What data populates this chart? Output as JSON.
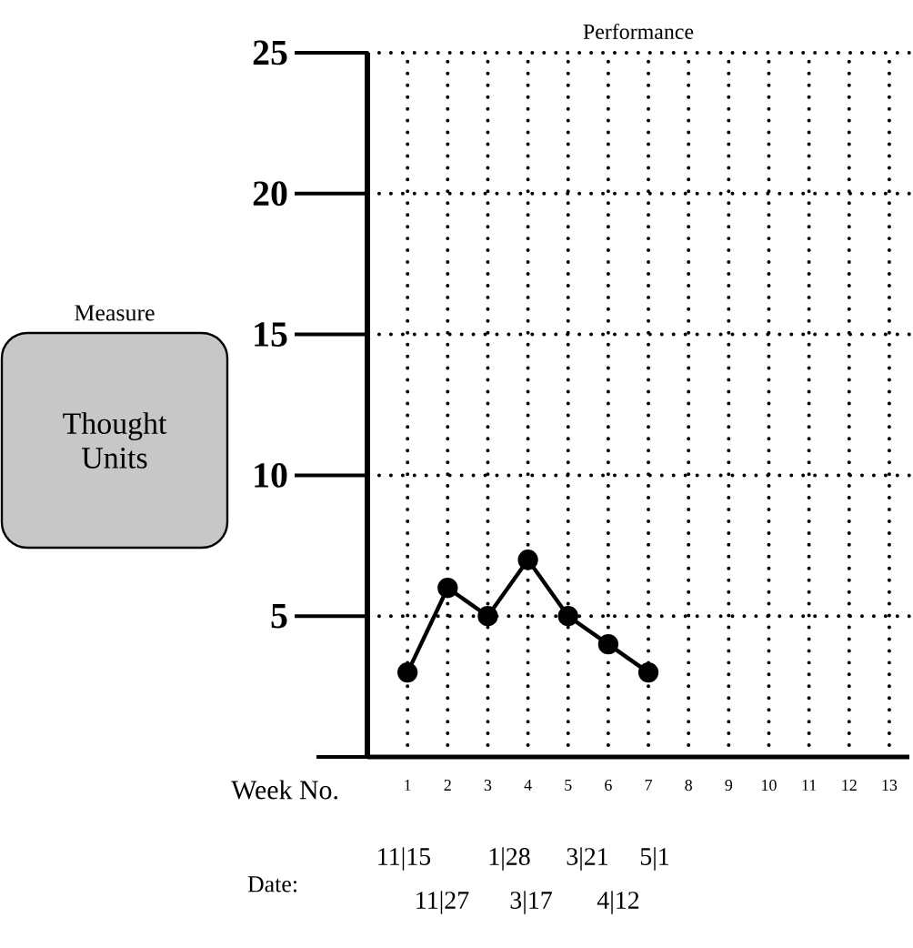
{
  "chart_data": {
    "type": "line",
    "title": "Performance",
    "xlabel": "Week No.",
    "ylabel": "Thought Units",
    "annotations": [
      "Measure",
      "Date:",
      "11|15",
      "1|28",
      "3|21",
      "5|1",
      "11|27",
      "3|17",
      "4|12"
    ],
    "x": [
      1,
      2,
      3,
      4,
      5,
      6,
      7
    ],
    "values": [
      3,
      6,
      5,
      7,
      5,
      4,
      3
    ],
    "color": "#000000",
    "marker": "circle",
    "xlim": [
      0,
      13.5
    ],
    "xticks": [
      1,
      2,
      3,
      4,
      5,
      6,
      7,
      8,
      9,
      10,
      11,
      12,
      13
    ],
    "ylim": [
      0,
      25
    ],
    "yticks": [
      {
        "value": 0,
        "label": null
      },
      5,
      10,
      15,
      20,
      25
    ],
    "grid": true
  }
}
